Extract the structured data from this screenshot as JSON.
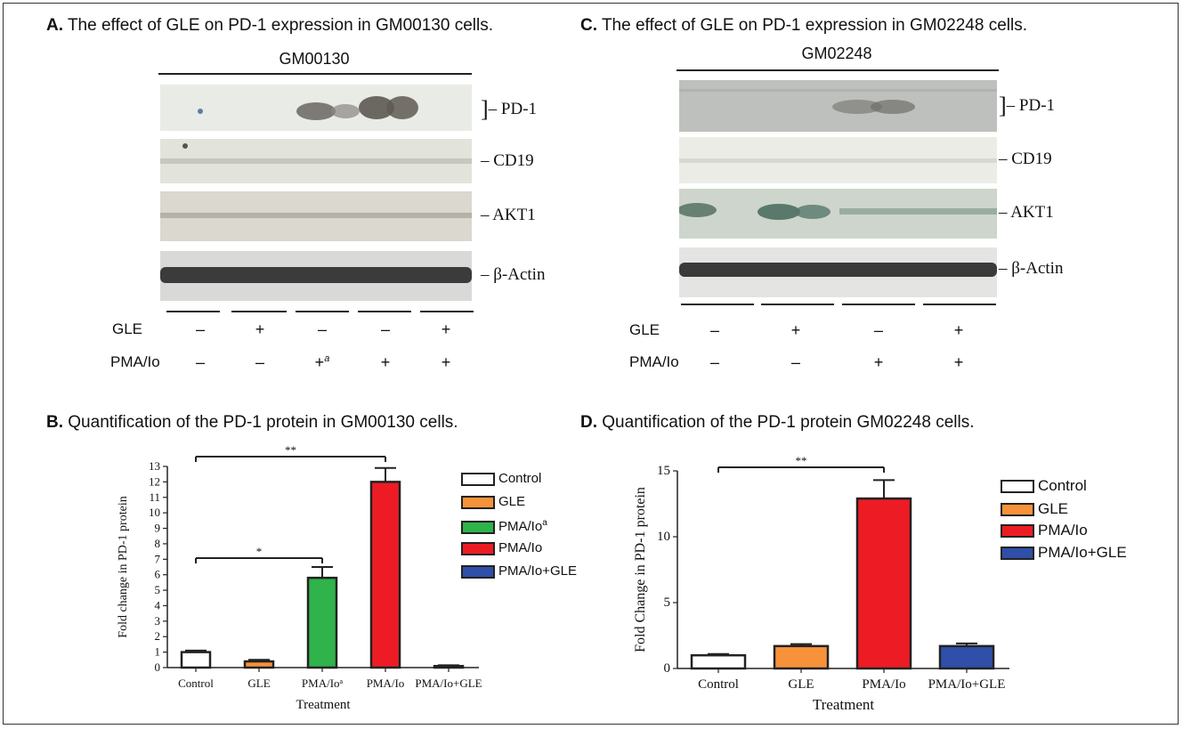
{
  "panel_a": {
    "letter": "A.",
    "title": "The effect of GLE on PD-1 expression in GM00130 cells.",
    "cell_line": "GM00130",
    "blots": [
      "PD-1",
      "CD19",
      "AKT1",
      "β-Actin"
    ],
    "rows": [
      {
        "label": "GLE",
        "signs": [
          "–",
          "+",
          "–",
          "–",
          "+"
        ]
      },
      {
        "label": "PMA/Io",
        "signs": [
          "–",
          "–",
          "+",
          "+",
          "+"
        ]
      }
    ],
    "superscript_a": "a"
  },
  "panel_c": {
    "letter": "C.",
    "title": "The effect of GLE on PD-1 expression in GM02248 cells.",
    "cell_line": "GM02248",
    "blots": [
      "PD-1",
      "CD19",
      "AKT1",
      "β-Actin"
    ],
    "rows": [
      {
        "label": "GLE",
        "signs": [
          "–",
          "+",
          "–",
          "+"
        ]
      },
      {
        "label": "PMA/Io",
        "signs": [
          "–",
          "–",
          "+",
          "+"
        ]
      }
    ]
  },
  "panel_b": {
    "letter": "B.",
    "title": "Quantification of the PD-1 protein in GM00130 cells.",
    "legend": [
      "Control",
      "GLE",
      "PMA/Io",
      "PMA/Io",
      "PMA/Io+GLE"
    ],
    "legend_superscript": "a"
  },
  "panel_d": {
    "letter": "D.",
    "title": "Quantification of the PD-1 protein GM02248 cells.",
    "legend": [
      "Control",
      "GLE",
      "PMA/Io",
      "PMA/Io+GLE"
    ]
  },
  "colors": {
    "control": "#ffffff",
    "gle": "#f7923a",
    "pma_a": "#2fb34a",
    "pma": "#ed1c24",
    "pma_gle": "#2f4fa8"
  },
  "chart_data": [
    {
      "type": "bar",
      "categories": [
        "Control",
        "GLE",
        "PMA/Io",
        "PMA/Io",
        "PMA/Io+GLE"
      ],
      "category_superscripts": [
        "",
        "",
        "a",
        "",
        ""
      ],
      "values": [
        1.0,
        0.4,
        5.8,
        12.0,
        0.1
      ],
      "errors": [
        0.1,
        0.1,
        0.7,
        0.9,
        0.05
      ],
      "colors": [
        "#ffffff",
        "#f7923a",
        "#2fb34a",
        "#ed1c24",
        "#2f4fa8"
      ],
      "xlabel": "Treatment",
      "ylabel": "Fold change in PD-1 protein",
      "ylim": [
        0,
        13
      ],
      "yticks": [
        0,
        1,
        2,
        3,
        4,
        5,
        6,
        7,
        8,
        9,
        10,
        11,
        12,
        13
      ],
      "significance": [
        {
          "from": 0,
          "to": 2,
          "label": "*"
        },
        {
          "from": 0,
          "to": 3,
          "label": "**"
        }
      ],
      "legend_position": "right"
    },
    {
      "type": "bar",
      "categories": [
        "Control",
        "GLE",
        "PMA/Io",
        "PMA/Io+GLE"
      ],
      "values": [
        1.0,
        1.7,
        12.9,
        1.7
      ],
      "errors": [
        0.1,
        0.15,
        1.4,
        0.2
      ],
      "colors": [
        "#ffffff",
        "#f7923a",
        "#ed1c24",
        "#2f4fa8"
      ],
      "xlabel": "Treatment",
      "ylabel": "Fold Change in PD-1 protein",
      "ylim": [
        0,
        15
      ],
      "yticks": [
        0,
        5,
        10,
        15
      ],
      "significance": [
        {
          "from": 0,
          "to": 2,
          "label": "**"
        }
      ],
      "legend_position": "right"
    }
  ]
}
